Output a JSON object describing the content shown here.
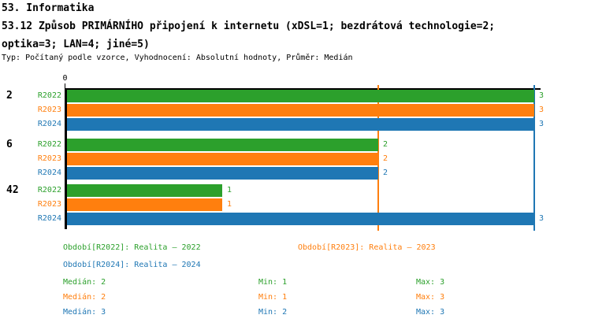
{
  "header": {
    "line1": "53. Informatika",
    "line2": "53.12 Způsob PRIMÁRNÍHO připojení k internetu (xDSL=1; bezdrátová technologie=2;",
    "line3": "optika=3; LAN=4; jiné=5)",
    "meta": "Typ: Počítaný podle vzorce, Vyhodnocení: Absolutní hodnoty, Průměr: Medián"
  },
  "colors": {
    "r2022": "#2ca02c",
    "r2023": "#ff7f0e",
    "r2024": "#1f77b4",
    "axis": "#000000"
  },
  "chart_data": {
    "type": "bar",
    "orientation": "horizontal",
    "title": "",
    "xlabel": "",
    "ylabel": "",
    "xlim": [
      0,
      3.05
    ],
    "x_tick_labels": [
      "0"
    ],
    "grid": false,
    "categories": [
      "2",
      "6",
      "42"
    ],
    "series": [
      {
        "name": "R2022",
        "color_key": "r2022",
        "values": [
          3,
          2,
          1
        ]
      },
      {
        "name": "R2023",
        "color_key": "r2023",
        "values": [
          3,
          2,
          1
        ]
      },
      {
        "name": "R2024",
        "color_key": "r2024",
        "values": [
          3,
          2,
          3
        ]
      }
    ],
    "median_lines": [
      {
        "value": 2,
        "color_key": "r2023"
      },
      {
        "value": 3,
        "color_key": "r2024"
      }
    ]
  },
  "legend": {
    "periods": [
      {
        "label": "Období[R2022]: Realita – 2022",
        "color_key": "r2022",
        "row": 0,
        "col": 0
      },
      {
        "label": "Období[R2023]: Realita – 2023",
        "color_key": "r2023",
        "row": 0,
        "col": 1
      },
      {
        "label": "Období[R2024]: Realita – 2024",
        "color_key": "r2024",
        "row": 1,
        "col": 0
      }
    ],
    "stats": [
      {
        "color_key": "r2022",
        "median": "Medián: 2",
        "min": "Min: 1",
        "max": "Max: 3"
      },
      {
        "color_key": "r2023",
        "median": "Medián: 2",
        "min": "Min: 1",
        "max": "Max: 3"
      },
      {
        "color_key": "r2024",
        "median": "Medián: 3",
        "min": "Min: 2",
        "max": "Max: 3"
      }
    ]
  }
}
